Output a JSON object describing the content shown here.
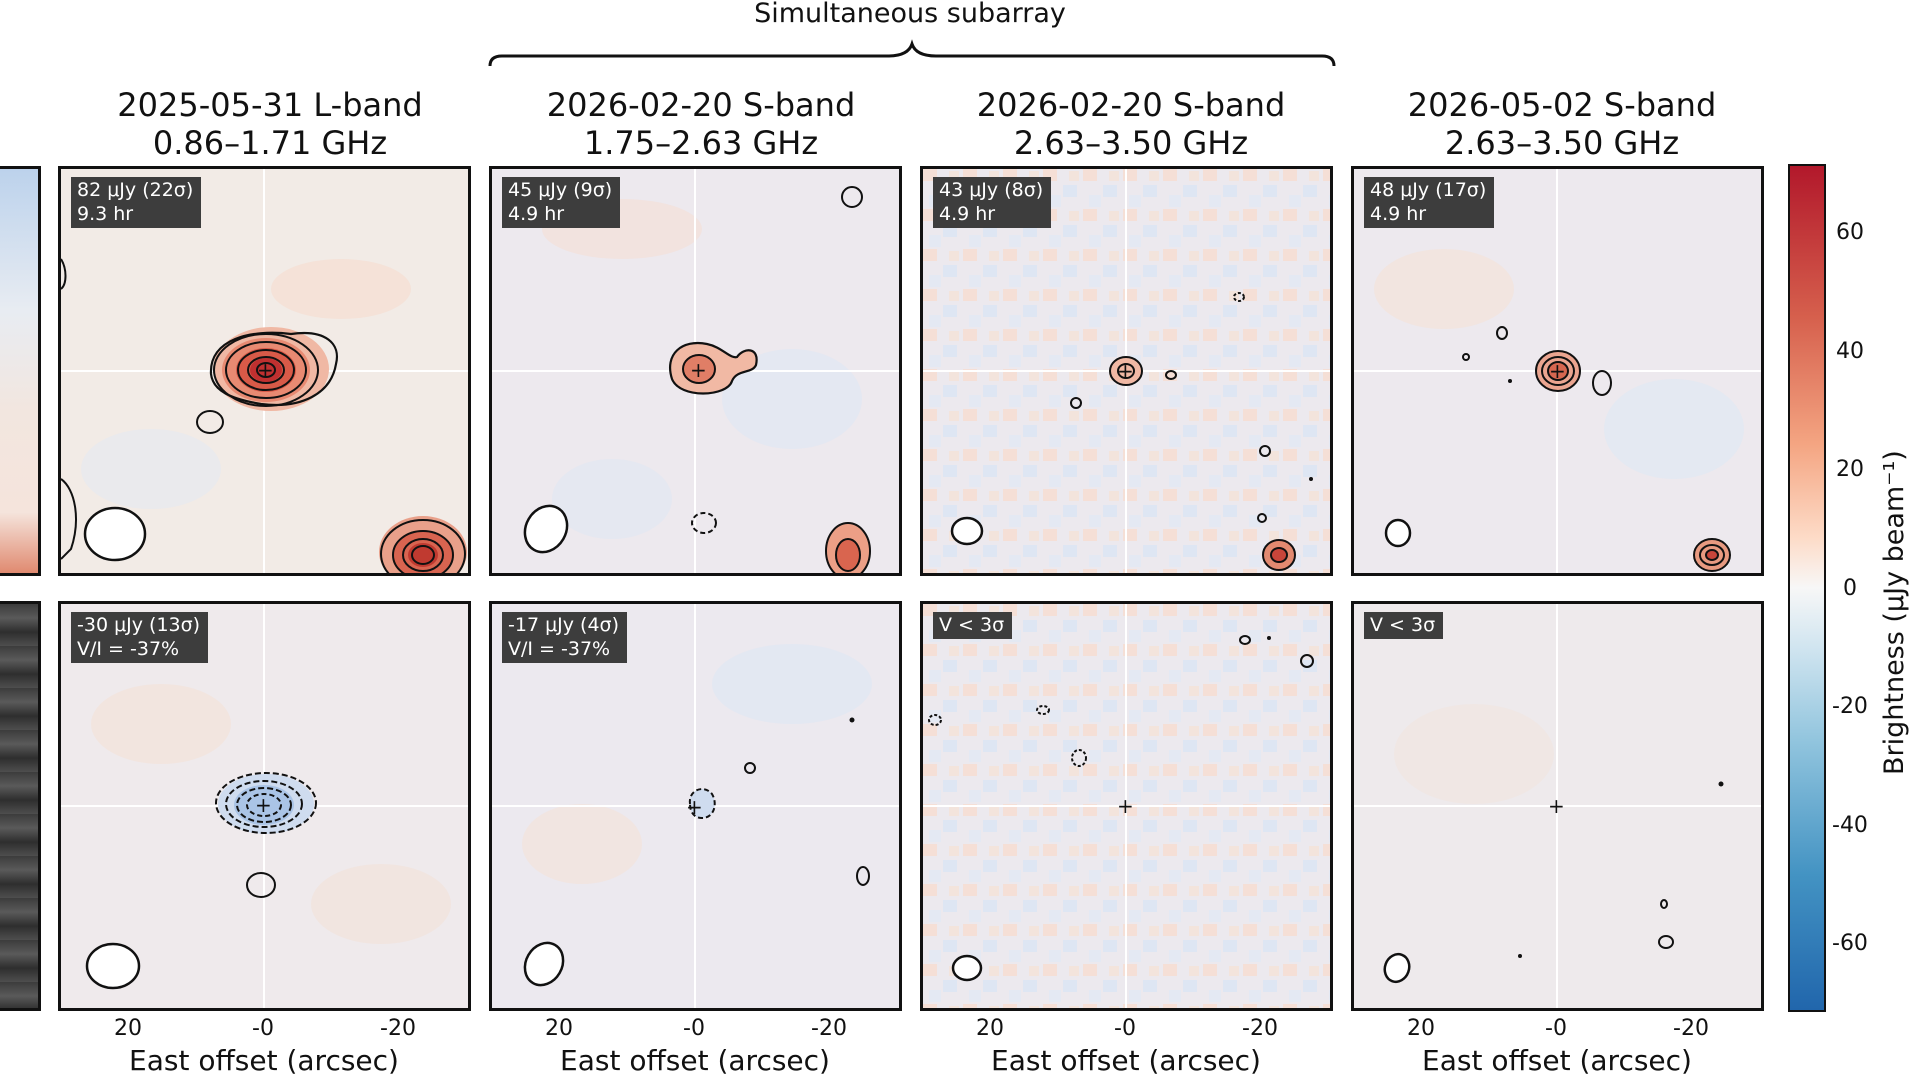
{
  "header": {
    "subarray_label": "Simultaneous subarray"
  },
  "columns": [
    {
      "title_line1": "2025-05-31  L-band",
      "title_line2": "0.86–1.71 GHz"
    },
    {
      "title_line1": "2026-02-20  S-band",
      "title_line2": "1.75–2.63 GHz"
    },
    {
      "title_line1": "2026-02-20  S-band",
      "title_line2": "2.63–3.50 GHz"
    },
    {
      "title_line1": "2026-05-02  S-band",
      "title_line2": "2.63–3.50 GHz"
    }
  ],
  "top_panels": [
    {
      "line1": "82 μJy (22σ)",
      "line2": "9.3 hr"
    },
    {
      "line1": "45 μJy (9σ)",
      "line2": "4.9 hr"
    },
    {
      "line1": "43 μJy (8σ)",
      "line2": "4.9 hr"
    },
    {
      "line1": "48 μJy (17σ)",
      "line2": "4.9 hr"
    }
  ],
  "bottom_panels": [
    {
      "line1": "-30 μJy (13σ)",
      "line2": "V/I = -37%"
    },
    {
      "line1": "-17 μJy (4σ)",
      "line2": "V/I = -37%"
    },
    {
      "line1": "V < 3σ",
      "line2": ""
    },
    {
      "line1": "V < 3σ",
      "line2": ""
    }
  ],
  "axis": {
    "xlabel": "East offset (arcsec)",
    "xticks": [
      "20",
      "-0",
      "-20"
    ]
  },
  "colorbar": {
    "label": "Brightness (μJy beam⁻¹)",
    "ticks": [
      "60",
      "40",
      "20",
      "0",
      "-20",
      "-40",
      "-60"
    ],
    "colors": {
      "high": "#b2182b",
      "mid": "#f7f7f7",
      "low": "#2166ac"
    }
  }
}
